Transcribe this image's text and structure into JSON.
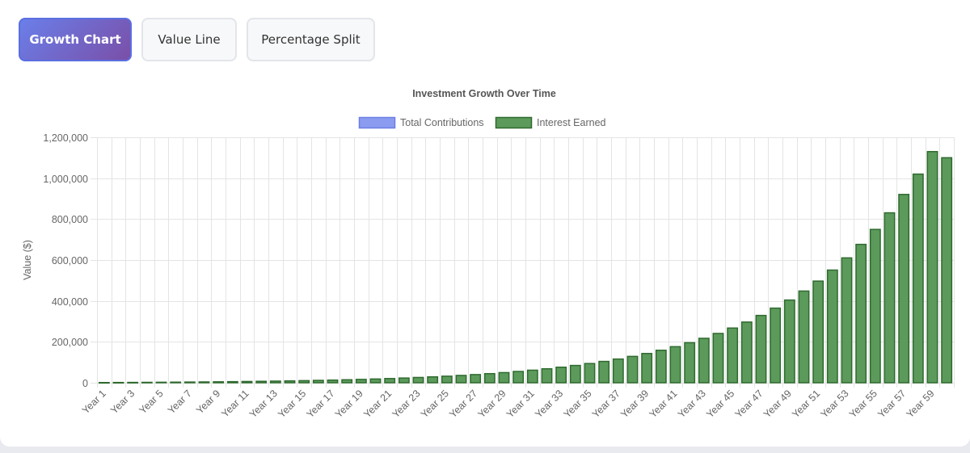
{
  "tabs": [
    {
      "label": "Growth Chart",
      "active": true
    },
    {
      "label": "Value Line",
      "active": false
    },
    {
      "label": "Percentage Split",
      "active": false
    }
  ],
  "chart_data": {
    "type": "bar",
    "stacked": true,
    "title": "Investment Growth Over Time",
    "xlabel": "",
    "ylabel": "Value ($)",
    "ylim": [
      0,
      1200000
    ],
    "yticks": [
      0,
      200000,
      400000,
      600000,
      800000,
      1000000,
      1200000
    ],
    "ytick_labels": [
      "0",
      "200,000",
      "400,000",
      "600,000",
      "800,000",
      "1,000,000",
      "1,200,000"
    ],
    "grid": true,
    "legend_position": "top",
    "colors": {
      "contributions": "#8b9cf0",
      "contributions_border": "#6b7fe4",
      "interest": "#5b9a5b",
      "interest_border": "#2f6a2f"
    },
    "categories": [
      "Year 1",
      "Year 2",
      "Year 3",
      "Year 4",
      "Year 5",
      "Year 6",
      "Year 7",
      "Year 8",
      "Year 9",
      "Year 10",
      "Year 11",
      "Year 12",
      "Year 13",
      "Year 14",
      "Year 15",
      "Year 16",
      "Year 17",
      "Year 18",
      "Year 19",
      "Year 20",
      "Year 21",
      "Year 22",
      "Year 23",
      "Year 24",
      "Year 25",
      "Year 26",
      "Year 27",
      "Year 28",
      "Year 29",
      "Year 30",
      "Year 31",
      "Year 32",
      "Year 33",
      "Year 34",
      "Year 35",
      "Year 36",
      "Year 37",
      "Year 38",
      "Year 39",
      "Year 40",
      "Year 41",
      "Year 42",
      "Year 43",
      "Year 44",
      "Year 45",
      "Year 46",
      "Year 47",
      "Year 48",
      "Year 49",
      "Year 50",
      "Year 51",
      "Year 52",
      "Year 53",
      "Year 54",
      "Year 55",
      "Year 56",
      "Year 57",
      "Year 58",
      "Year 59",
      "Year 60"
    ],
    "visible_tick_labels": [
      "Year 1",
      "Year 3",
      "Year 5",
      "Year 7",
      "Year 9",
      "Year 11",
      "Year 13",
      "Year 15",
      "Year 17",
      "Year 19",
      "Year 21",
      "Year 23",
      "Year 25",
      "Year 27",
      "Year 29",
      "Year 31",
      "Year 33",
      "Year 35",
      "Year 37",
      "Year 39",
      "Year 41",
      "Year 43",
      "Year 45",
      "Year 47",
      "Year 49",
      "Year 51",
      "Year 53",
      "Year 55",
      "Year 57",
      "Year 59"
    ],
    "series": [
      {
        "name": "Total Contributions",
        "values": [
          0,
          0,
          0,
          0,
          0,
          0,
          0,
          0,
          0,
          0,
          0,
          0,
          0,
          0,
          0,
          0,
          0,
          0,
          0,
          0,
          0,
          0,
          0,
          0,
          0,
          0,
          0,
          0,
          0,
          0,
          0,
          0,
          0,
          0,
          0,
          0,
          0,
          0,
          0,
          0,
          0,
          0,
          0,
          0,
          0,
          0,
          0,
          0,
          0,
          0,
          0,
          0,
          0,
          0,
          0,
          0,
          0,
          0,
          0,
          0
        ]
      },
      {
        "name": "Interest Earned",
        "values": [
          1000,
          1300,
          1600,
          2000,
          2400,
          2900,
          3400,
          4000,
          4600,
          5300,
          6100,
          7000,
          8000,
          9000,
          10300,
          11600,
          13000,
          14600,
          16400,
          18400,
          20600,
          23000,
          25800,
          28800,
          32100,
          35800,
          39900,
          44500,
          49600,
          55200,
          61400,
          68300,
          76000,
          84500,
          93900,
          104300,
          115900,
          128800,
          143000,
          158800,
          176300,
          195700,
          217200,
          241000,
          267400,
          296700,
          329000,
          364800,
          404400,
          448300,
          496900,
          550800,
          610400,
          676400,
          749600,
          830700,
          920500,
          1020000,
          1130000,
          1100000
        ]
      }
    ]
  }
}
